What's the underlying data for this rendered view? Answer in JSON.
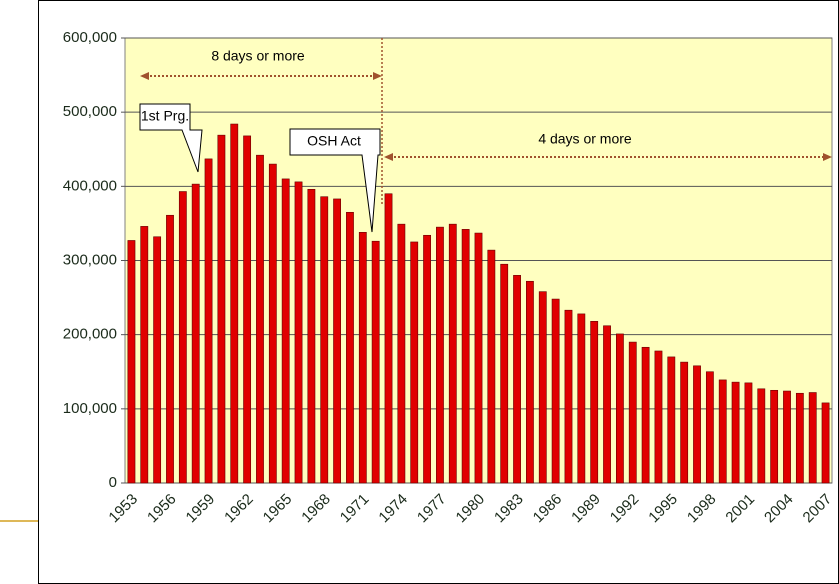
{
  "chart_data": {
    "type": "bar",
    "categories": [
      "1953",
      null,
      null,
      "1956",
      null,
      null,
      "1959",
      null,
      null,
      "1962",
      null,
      null,
      "1965",
      null,
      null,
      "1968",
      null,
      null,
      "1971",
      null,
      null,
      "1974",
      null,
      null,
      "1977",
      null,
      null,
      "1980",
      null,
      null,
      "1983",
      null,
      null,
      "1986",
      null,
      null,
      "1989",
      null,
      null,
      "1992",
      null,
      null,
      "1995",
      null,
      null,
      "1998",
      null,
      null,
      "2001",
      null,
      null,
      "2004",
      null,
      null,
      "2007"
    ],
    "values": [
      327000,
      346000,
      332000,
      361000,
      393000,
      403000,
      437000,
      469000,
      484000,
      468000,
      442000,
      430000,
      410000,
      406000,
      396000,
      386000,
      383000,
      365000,
      338000,
      326000,
      390000,
      349000,
      325000,
      334000,
      345000,
      349000,
      342000,
      337000,
      314000,
      295000,
      280000,
      272000,
      258000,
      248000,
      233000,
      228000,
      218000,
      212000,
      201000,
      190000,
      183000,
      178000,
      170000,
      163000,
      158000,
      150000,
      139000,
      136000,
      135000,
      127000,
      125000,
      124000,
      121000,
      122000,
      108000
    ],
    "color": "#e00000",
    "ylim": [
      0,
      600000
    ],
    "yticks": [
      0,
      {
        "value": 100000,
        "label": "100,000"
      },
      {
        "value": 200000,
        "label": "200,000"
      },
      {
        "value": 300000,
        "label": "300,000"
      },
      {
        "value": 400000,
        "label": "400,000"
      },
      {
        "value": 500000,
        "label": "500,000"
      },
      {
        "value": 600000,
        "label": "600,000"
      }
    ],
    "grid": true,
    "annotations": [
      "8 days or more",
      "4 days or more",
      "1st Prg.",
      "OSH Act"
    ]
  }
}
